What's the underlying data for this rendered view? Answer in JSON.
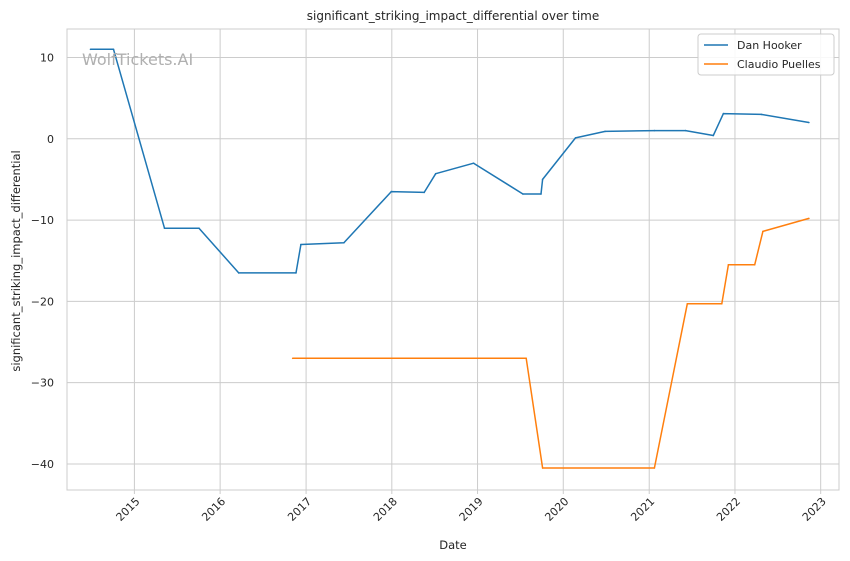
{
  "chart_data": {
    "type": "line",
    "title": "significant_striking_impact_differential over time",
    "xlabel": "Date",
    "ylabel": "significant_striking_impact_differential",
    "watermark": "WolfTickets.AI",
    "x_ticks": [
      "2015",
      "2016",
      "2017",
      "2018",
      "2019",
      "2020",
      "2021",
      "2022",
      "2023"
    ],
    "y_ticks": [
      10,
      0,
      -10,
      -20,
      -30,
      -40
    ],
    "xlim": [
      "2014-03-20",
      "2023-03-20"
    ],
    "ylim": [
      -43.2,
      13.5
    ],
    "grid": true,
    "legend_position": "top-right",
    "series": [
      {
        "name": "Dan Hooker",
        "color": "#1f77b4",
        "points": [
          [
            "2014-06-28",
            11
          ],
          [
            "2014-10-04",
            11
          ],
          [
            "2015-05-09",
            -11
          ],
          [
            "2015-10-03",
            -11
          ],
          [
            "2016-03-20",
            -16.5
          ],
          [
            "2016-11-19",
            -16.5
          ],
          [
            "2016-12-10",
            -13
          ],
          [
            "2017-06-11",
            -12.8
          ],
          [
            "2017-12-30",
            -6.5
          ],
          [
            "2018-05-19",
            -6.6
          ],
          [
            "2018-07-07",
            -4.3
          ],
          [
            "2018-12-15",
            -3
          ],
          [
            "2019-07-13",
            -6.8
          ],
          [
            "2019-09-28",
            -6.8
          ],
          [
            "2019-10-05",
            -5
          ],
          [
            "2020-02-22",
            0.1
          ],
          [
            "2020-06-27",
            0.9
          ],
          [
            "2021-01-23",
            1
          ],
          [
            "2021-06-05",
            1
          ],
          [
            "2021-10-01",
            0.4
          ],
          [
            "2021-11-13",
            3.1
          ],
          [
            "2022-04-23",
            3
          ],
          [
            "2022-11-12",
            2
          ]
        ]
      },
      {
        "name": "Claudio Puelles",
        "color": "#ff7f0e",
        "points": [
          [
            "2016-11-05",
            -27
          ],
          [
            "2019-07-27",
            -27
          ],
          [
            "2019-10-05",
            -40.5
          ],
          [
            "2021-01-23",
            -40.5
          ],
          [
            "2021-06-12",
            -20.3
          ],
          [
            "2021-11-06",
            -20.3
          ],
          [
            "2021-12-04",
            -15.5
          ],
          [
            "2022-03-26",
            -15.5
          ],
          [
            "2022-04-30",
            -11.4
          ],
          [
            "2022-11-12",
            -9.8
          ]
        ]
      }
    ]
  }
}
